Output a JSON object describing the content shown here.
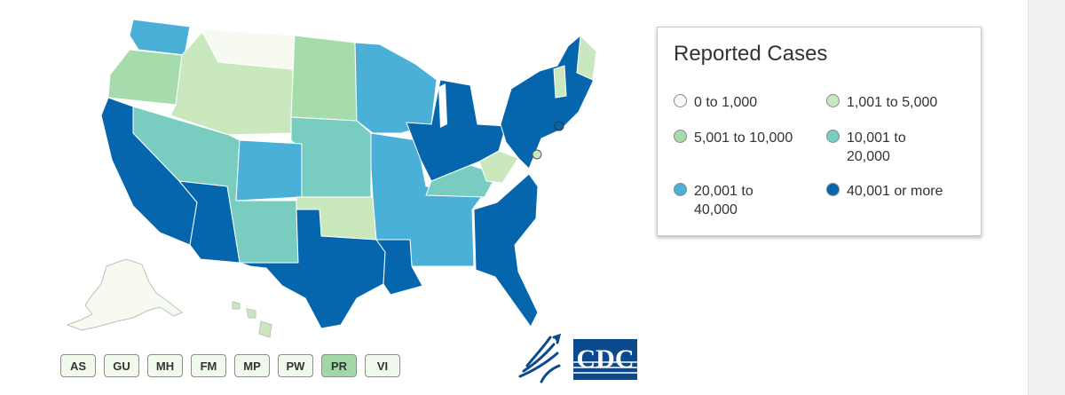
{
  "legend": {
    "title": "Reported Cases",
    "items": [
      {
        "label": "0 to 1,000",
        "color": "#f6faf0"
      },
      {
        "label": "1,001 to 5,000",
        "color": "#c9e8bd"
      },
      {
        "label": "5,001 to 10,000",
        "color": "#a6dbab"
      },
      {
        "label": "10,001 to 20,000",
        "color": "#79cdc0"
      },
      {
        "label": "20,001 to 40,000",
        "color": "#4ab0d8"
      },
      {
        "label": "40,001 or more",
        "color": "#0565ad"
      }
    ]
  },
  "map_regions": {
    "west_coast": "40,001 or more",
    "southwest": "40,001 or more",
    "texas": "40,001 or more",
    "gulf_south": "40,001 or more",
    "southeast": "40,001 or more",
    "great_lakes": "40,001 or more",
    "northeast": "40,001 or more",
    "washington": "20,001 to 40,000",
    "colorado": "20,001 to 40,000",
    "upper_midwest": "20,001 to 40,000",
    "central_south": "20,001 to 40,000",
    "plains": "10,001 to 20,000",
    "mountain": "10,001 to 20,000",
    "kentucky": "10,001 to 20,000",
    "northwest": "5,001 to 10,000",
    "dakotas": "5,001 to 10,000",
    "idaho_wyoming": "1,001 to 5,000",
    "oklahoma": "1,001 to 5,000",
    "west_virginia": "1,001 to 5,000",
    "montana": "0 to 1,000",
    "alaska": "0 to 1,000",
    "hawaii": "1,001 to 5,000"
  },
  "territories": [
    {
      "label": "AS",
      "color": "#f1f8ec"
    },
    {
      "label": "GU",
      "color": "#f1f8ec"
    },
    {
      "label": "MH",
      "color": "#f1f8ec"
    },
    {
      "label": "FM",
      "color": "#f1f8ec"
    },
    {
      "label": "MP",
      "color": "#f1f8ec"
    },
    {
      "label": "PW",
      "color": "#f1f8ec"
    },
    {
      "label": "PR",
      "color": "#a2d8a8"
    },
    {
      "label": "VI",
      "color": "#f1f8ec"
    }
  ],
  "logos": {
    "hhs": "hhs-eagle-logo",
    "cdc_text": "CDC",
    "cdc_color": "#0b4a8e"
  }
}
